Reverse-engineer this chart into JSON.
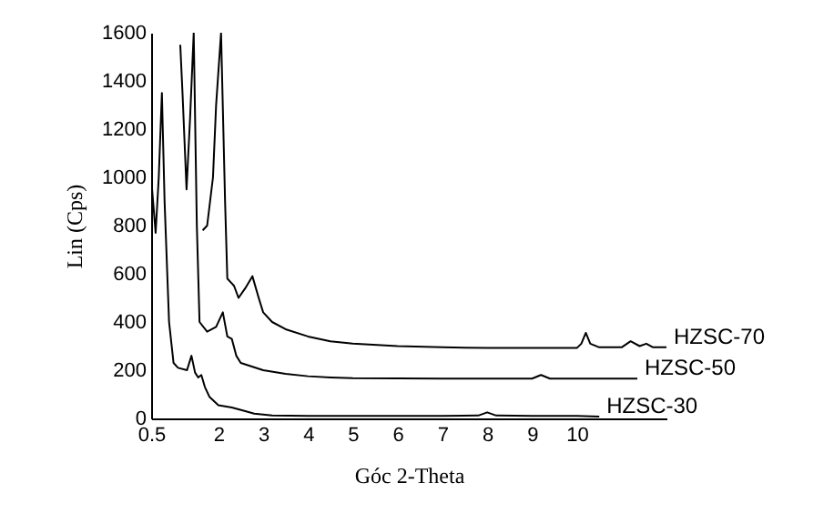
{
  "chart_data": {
    "type": "line",
    "xlabel": "Góc 2-Theta",
    "ylabel": "Lin (Cps)",
    "xlim": [
      0.5,
      12
    ],
    "ylim": [
      0,
      1600
    ],
    "xticks": [
      0.5,
      2,
      3,
      4,
      5,
      6,
      7,
      8,
      9,
      10
    ],
    "yticks": [
      0,
      200,
      400,
      600,
      800,
      1000,
      1200,
      1400,
      1600
    ],
    "grid": false,
    "marker": "none",
    "line_style": "solid",
    "series": [
      {
        "name": "HZSC-70",
        "color": "#000000",
        "x": [
          1.65,
          1.75,
          1.88,
          1.95,
          2.06,
          2.15,
          2.2,
          2.35,
          2.45,
          2.6,
          2.76,
          2.9,
          3.0,
          3.2,
          3.5,
          4,
          4.5,
          5,
          6,
          7,
          8,
          9,
          10,
          10.1,
          10.2,
          10.3,
          10.5,
          11,
          11.2,
          11.4,
          11.55,
          11.7,
          12
        ],
        "values": [
          780,
          800,
          1000,
          1300,
          1600,
          900,
          580,
          550,
          500,
          540,
          590,
          500,
          440,
          400,
          370,
          340,
          320,
          310,
          300,
          295,
          292,
          292,
          292,
          310,
          355,
          310,
          295,
          295,
          320,
          300,
          310,
          295,
          295
        ]
      },
      {
        "name": "HZSC-50",
        "color": "#000000",
        "x": [
          1.15,
          1.2,
          1.29,
          1.37,
          1.45,
          1.52,
          1.58,
          1.75,
          1.95,
          2.1,
          2.2,
          2.3,
          2.4,
          2.5,
          3,
          3.5,
          4,
          4.5,
          5,
          6,
          7,
          8,
          9,
          9.2,
          9.4,
          10,
          11,
          11.35
        ],
        "values": [
          1550,
          1350,
          950,
          1250,
          1600,
          800,
          400,
          360,
          380,
          440,
          340,
          330,
          260,
          230,
          200,
          185,
          175,
          170,
          167,
          166,
          165,
          165,
          165,
          180,
          165,
          165,
          165,
          165
        ]
      },
      {
        "name": "HZSC-30",
        "color": "#000000",
        "x": [
          0.5,
          0.6,
          0.67,
          0.74,
          0.8,
          0.9,
          1.0,
          1.1,
          1.3,
          1.4,
          1.48,
          1.55,
          1.62,
          1.7,
          1.8,
          2.0,
          2.3,
          2.6,
          2.8,
          3.2,
          4,
          5,
          6,
          7,
          7.8,
          8.0,
          8.2,
          9,
          10,
          10.5
        ],
        "values": [
          1000,
          770,
          1000,
          1350,
          900,
          400,
          230,
          210,
          200,
          260,
          190,
          170,
          180,
          130,
          90,
          55,
          45,
          30,
          20,
          12,
          10,
          10,
          10,
          10,
          12,
          25,
          12,
          10,
          10,
          8
        ]
      }
    ]
  }
}
